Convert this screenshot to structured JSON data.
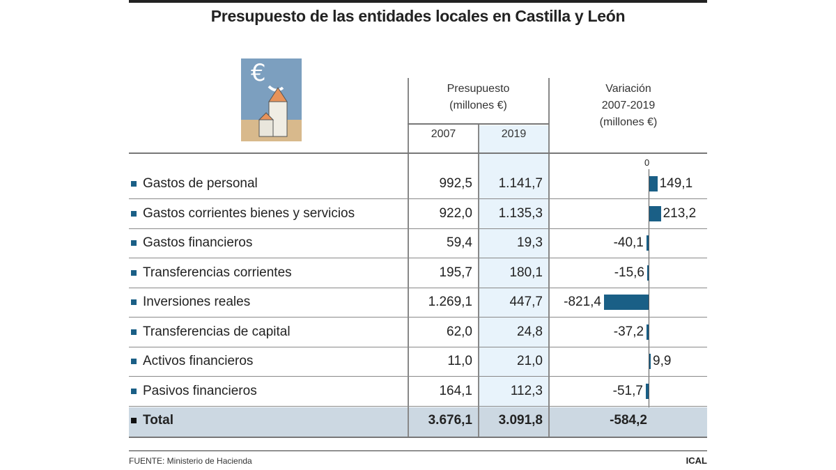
{
  "chart_data": {
    "type": "table",
    "title": "Presupuesto de las entidades locales en Castilla y León",
    "column_group_header": "Presupuesto (millones €)",
    "columns": [
      "2007",
      "2019"
    ],
    "variation_header": "Variación 2007-2019 (millones €)",
    "axis_zero_label": "0",
    "rows": [
      {
        "label": "Gastos de personal",
        "y2007": "992,5",
        "y2019": "1.141,7",
        "variation": 149.1,
        "variation_label": "149,1"
      },
      {
        "label": "Gastos corrientes bienes y servicios",
        "y2007": "922,0",
        "y2019": "1.135,3",
        "variation": 213.2,
        "variation_label": "213,2"
      },
      {
        "label": "Gastos financieros",
        "y2007": "59,4",
        "y2019": "19,3",
        "variation": -40.1,
        "variation_label": "-40,1"
      },
      {
        "label": "Transferencias corrientes",
        "y2007": "195,7",
        "y2019": "180,1",
        "variation": -15.6,
        "variation_label": "-15,6"
      },
      {
        "label": "Inversiones reales",
        "y2007": "1.269,1",
        "y2019": "447,7",
        "variation": -821.4,
        "variation_label": "-821,4"
      },
      {
        "label": "Transferencias de capital",
        "y2007": "62,0",
        "y2019": "24,8",
        "variation": -37.2,
        "variation_label": "-37,2"
      },
      {
        "label": "Activos financieros",
        "y2007": "11,0",
        "y2019": "21,0",
        "variation": 9.9,
        "variation_label": "9,9"
      },
      {
        "label": "Pasivos financieros",
        "y2007": "164,1",
        "y2019": "112,3",
        "variation": -51.7,
        "variation_label": "-51,7"
      }
    ],
    "total": {
      "label": "Total",
      "y2007": "3.676,1",
      "y2019": "3.091,8",
      "variation_label": "-584,2"
    },
    "bar_color": "#1a5f86",
    "highlight_color": "#e8f3fb",
    "total_row_color": "#ccd8e2"
  },
  "header": {
    "group_line1": "Presupuesto",
    "group_line2": "(millones €)",
    "col2007": "2007",
    "col2019": "2019",
    "var_line1": "Variación",
    "var_line2": "2007-2019",
    "var_line3": "(millones €)"
  },
  "footer": {
    "source": "FUENTE: Ministerio de Hacienda",
    "credit": "ICAL"
  }
}
